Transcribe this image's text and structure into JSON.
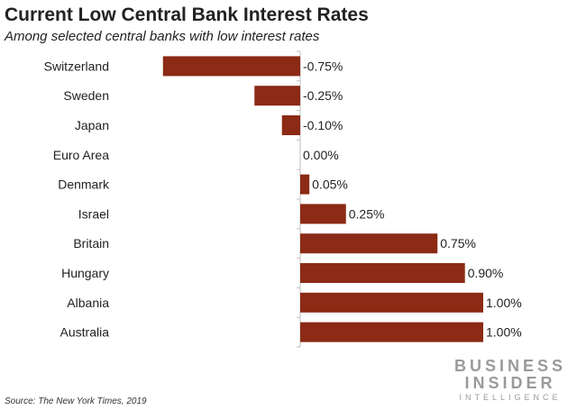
{
  "chart_data": {
    "type": "bar",
    "orientation": "horizontal",
    "title": "Current Low Central Bank Interest Rates",
    "subtitle": "Among selected central banks with low interest rates",
    "categories": [
      "Switzerland",
      "Sweden",
      "Japan",
      "Euro Area",
      "Denmark",
      "Israel",
      "Britain",
      "Hungary",
      "Albania",
      "Australia"
    ],
    "values": [
      -0.75,
      -0.25,
      -0.1,
      0.0,
      0.05,
      0.25,
      0.75,
      0.9,
      1.0,
      1.0
    ],
    "data_labels": [
      "-0.75%",
      "-0.25%",
      "-0.10%",
      "0.00%",
      "0.05%",
      "0.25%",
      "0.75%",
      "0.90%",
      "1.00%",
      "1.00%"
    ],
    "xlim": [
      -0.75,
      1.0
    ],
    "xlabel": "",
    "ylabel": "",
    "grid": false,
    "bar_color": "#8B2A15"
  },
  "source": "Source: The New York Times, 2019",
  "logo": {
    "line1": "BUSINESS",
    "line2": "INSIDER",
    "line3": "INTELLIGENCE"
  }
}
